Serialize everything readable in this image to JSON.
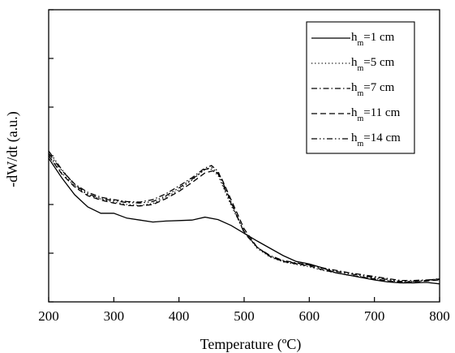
{
  "chart_data": {
    "type": "line",
    "xlabel": "Temperature (ºC)",
    "ylabel": "-dW/dt (a.u.)",
    "xlim": [
      200,
      800
    ],
    "ylim": [
      0,
      6
    ],
    "x_ticks": [
      200,
      300,
      400,
      500,
      600,
      700,
      800
    ],
    "x_tick_labels": [
      "200",
      "300",
      "400",
      "500",
      "600",
      "700",
      "800"
    ],
    "y_ticks": [
      0,
      1,
      2,
      3,
      4,
      5,
      6
    ],
    "y_tick_labels": [
      "",
      "",
      "",
      "",
      "",
      "",
      ""
    ],
    "grid": false,
    "legend_position": "top-right",
    "series": [
      {
        "name": "hm=1 cm",
        "label_main": "h",
        "label_sub": "m",
        "label_rest": "=1 cm",
        "dash": "solid",
        "color": "#000000",
        "points": [
          [
            200,
            2.95
          ],
          [
            220,
            2.55
          ],
          [
            240,
            2.2
          ],
          [
            260,
            1.95
          ],
          [
            280,
            1.82
          ],
          [
            300,
            1.82
          ],
          [
            320,
            1.72
          ],
          [
            340,
            1.68
          ],
          [
            360,
            1.64
          ],
          [
            380,
            1.66
          ],
          [
            400,
            1.67
          ],
          [
            420,
            1.68
          ],
          [
            440,
            1.74
          ],
          [
            460,
            1.69
          ],
          [
            480,
            1.57
          ],
          [
            500,
            1.41
          ],
          [
            520,
            1.25
          ],
          [
            540,
            1.1
          ],
          [
            560,
            0.95
          ],
          [
            580,
            0.83
          ],
          [
            600,
            0.78
          ],
          [
            620,
            0.7
          ],
          [
            640,
            0.6
          ],
          [
            660,
            0.55
          ],
          [
            680,
            0.5
          ],
          [
            700,
            0.45
          ],
          [
            720,
            0.41
          ],
          [
            740,
            0.39
          ],
          [
            760,
            0.39
          ],
          [
            780,
            0.4
          ],
          [
            800,
            0.37
          ]
        ]
      },
      {
        "name": "hm=5 cm",
        "label_main": "h",
        "label_sub": "m",
        "label_rest": "=5 cm",
        "dash": "dotted",
        "color": "#000000",
        "points": [
          [
            200,
            3.0
          ],
          [
            220,
            2.65
          ],
          [
            240,
            2.38
          ],
          [
            260,
            2.2
          ],
          [
            280,
            2.11
          ],
          [
            300,
            2.05
          ],
          [
            320,
            2.0
          ],
          [
            340,
            1.98
          ],
          [
            360,
            2.02
          ],
          [
            380,
            2.15
          ],
          [
            400,
            2.3
          ],
          [
            420,
            2.5
          ],
          [
            440,
            2.73
          ],
          [
            450,
            2.72
          ],
          [
            460,
            2.6
          ],
          [
            480,
            1.98
          ],
          [
            500,
            1.45
          ],
          [
            520,
            1.1
          ],
          [
            540,
            0.92
          ],
          [
            560,
            0.82
          ],
          [
            580,
            0.77
          ],
          [
            600,
            0.72
          ],
          [
            620,
            0.65
          ],
          [
            640,
            0.6
          ],
          [
            660,
            0.55
          ],
          [
            680,
            0.52
          ],
          [
            700,
            0.48
          ],
          [
            720,
            0.44
          ],
          [
            740,
            0.41
          ],
          [
            760,
            0.42
          ],
          [
            780,
            0.44
          ],
          [
            800,
            0.46
          ]
        ]
      },
      {
        "name": "hm=7 cm",
        "label_main": "h",
        "label_sub": "m",
        "label_rest": "=7 cm",
        "dash": "dashdot",
        "color": "#000000",
        "points": [
          [
            200,
            3.05
          ],
          [
            220,
            2.7
          ],
          [
            240,
            2.42
          ],
          [
            260,
            2.25
          ],
          [
            280,
            2.15
          ],
          [
            300,
            2.1
          ],
          [
            320,
            2.06
          ],
          [
            340,
            2.05
          ],
          [
            360,
            2.1
          ],
          [
            380,
            2.22
          ],
          [
            400,
            2.38
          ],
          [
            420,
            2.55
          ],
          [
            440,
            2.75
          ],
          [
            450,
            2.8
          ],
          [
            460,
            2.68
          ],
          [
            480,
            2.05
          ],
          [
            500,
            1.42
          ],
          [
            520,
            1.12
          ],
          [
            540,
            0.95
          ],
          [
            560,
            0.85
          ],
          [
            580,
            0.8
          ],
          [
            600,
            0.76
          ],
          [
            620,
            0.7
          ],
          [
            640,
            0.65
          ],
          [
            660,
            0.6
          ],
          [
            680,
            0.56
          ],
          [
            700,
            0.52
          ],
          [
            720,
            0.48
          ],
          [
            740,
            0.44
          ],
          [
            760,
            0.44
          ],
          [
            780,
            0.45
          ],
          [
            800,
            0.47
          ]
        ]
      },
      {
        "name": "hm=11 cm",
        "label_main": "h",
        "label_sub": "m",
        "label_rest": "=11 cm",
        "dash": "dashed",
        "color": "#000000",
        "points": [
          [
            200,
            3.0
          ],
          [
            220,
            2.63
          ],
          [
            240,
            2.36
          ],
          [
            260,
            2.18
          ],
          [
            280,
            2.09
          ],
          [
            300,
            2.03
          ],
          [
            320,
            1.98
          ],
          [
            340,
            1.97
          ],
          [
            360,
            2.0
          ],
          [
            380,
            2.12
          ],
          [
            400,
            2.27
          ],
          [
            420,
            2.45
          ],
          [
            440,
            2.65
          ],
          [
            455,
            2.7
          ],
          [
            465,
            2.55
          ],
          [
            480,
            2.1
          ],
          [
            500,
            1.5
          ],
          [
            520,
            1.12
          ],
          [
            540,
            0.93
          ],
          [
            560,
            0.83
          ],
          [
            580,
            0.78
          ],
          [
            600,
            0.74
          ],
          [
            620,
            0.66
          ],
          [
            640,
            0.6
          ],
          [
            660,
            0.55
          ],
          [
            680,
            0.51
          ],
          [
            700,
            0.47
          ],
          [
            720,
            0.43
          ],
          [
            740,
            0.4
          ],
          [
            760,
            0.41
          ],
          [
            780,
            0.43
          ],
          [
            800,
            0.45
          ]
        ]
      },
      {
        "name": "hm=14 cm",
        "label_main": "h",
        "label_sub": "m",
        "label_rest": "=14 cm",
        "dash": "dashdotdot",
        "color": "#000000",
        "points": [
          [
            200,
            3.1
          ],
          [
            220,
            2.72
          ],
          [
            240,
            2.4
          ],
          [
            260,
            2.22
          ],
          [
            280,
            2.12
          ],
          [
            300,
            2.08
          ],
          [
            320,
            2.04
          ],
          [
            340,
            2.03
          ],
          [
            360,
            2.06
          ],
          [
            380,
            2.18
          ],
          [
            400,
            2.34
          ],
          [
            420,
            2.52
          ],
          [
            440,
            2.72
          ],
          [
            450,
            2.76
          ],
          [
            460,
            2.64
          ],
          [
            480,
            2.02
          ],
          [
            500,
            1.44
          ],
          [
            520,
            1.12
          ],
          [
            540,
            0.94
          ],
          [
            560,
            0.84
          ],
          [
            580,
            0.79
          ],
          [
            600,
            0.76
          ],
          [
            620,
            0.69
          ],
          [
            640,
            0.63
          ],
          [
            660,
            0.58
          ],
          [
            680,
            0.54
          ],
          [
            700,
            0.5
          ],
          [
            720,
            0.46
          ],
          [
            740,
            0.42
          ],
          [
            760,
            0.42
          ],
          [
            780,
            0.44
          ],
          [
            800,
            0.48
          ]
        ]
      }
    ]
  }
}
